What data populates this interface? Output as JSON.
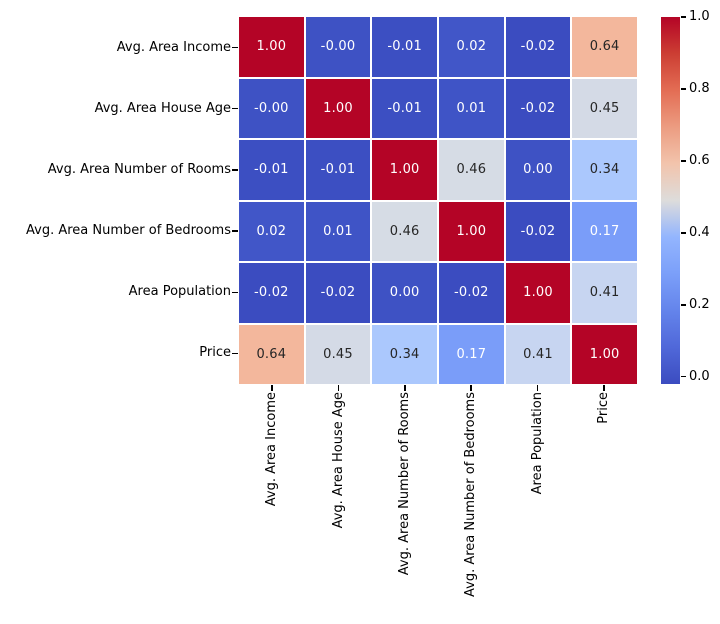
{
  "figure": {
    "background": "#ffffff",
    "axis_text_color": "#000000"
  },
  "chart_data": {
    "type": "heatmap",
    "title": "",
    "colormap": "coolwarm",
    "vmin": -0.02,
    "vmax": 1.0,
    "grid_line_color": "#ffffff",
    "row_labels": [
      "Avg. Area Income",
      "Avg. Area House Age",
      "Avg. Area Number of Rooms",
      "Avg. Area Number of Bedrooms",
      "Area Population",
      "Price"
    ],
    "col_labels": [
      "Avg. Area Income",
      "Avg. Area House Age",
      "Avg. Area Number of Rooms",
      "Avg. Area Number of Bedrooms",
      "Area Population",
      "Price"
    ],
    "matrix": [
      [
        1.0,
        -0.0,
        -0.01,
        0.02,
        -0.02,
        0.64
      ],
      [
        -0.0,
        1.0,
        -0.01,
        0.01,
        -0.02,
        0.45
      ],
      [
        -0.01,
        -0.01,
        1.0,
        0.46,
        0.0,
        0.34
      ],
      [
        0.02,
        0.01,
        0.46,
        1.0,
        -0.02,
        0.17
      ],
      [
        -0.02,
        -0.02,
        0.0,
        -0.02,
        1.0,
        0.41
      ],
      [
        0.64,
        0.45,
        0.34,
        0.17,
        0.41,
        1.0
      ]
    ],
    "annotations": [
      [
        "1.00",
        "-0.00",
        "-0.01",
        "0.02",
        "-0.02",
        "0.64"
      ],
      [
        "-0.00",
        "1.00",
        "-0.01",
        "0.01",
        "-0.02",
        "0.45"
      ],
      [
        "-0.01",
        "-0.01",
        "1.00",
        "0.46",
        "0.00",
        "0.34"
      ],
      [
        "0.02",
        "0.01",
        "0.46",
        "1.00",
        "-0.02",
        "0.17"
      ],
      [
        "-0.02",
        "-0.02",
        "0.00",
        "-0.02",
        "1.00",
        "0.41"
      ],
      [
        "0.64",
        "0.45",
        "0.34",
        "0.17",
        "0.41",
        "1.00"
      ]
    ],
    "cell_colors": [
      [
        "#b40426",
        "#3e52c4",
        "#3c4fc2",
        "#4156c8",
        "#3b4cc0",
        "#f3b79c"
      ],
      [
        "#3e52c4",
        "#b40426",
        "#3c4fc2",
        "#3f54c6",
        "#3b4cc0",
        "#d4dae6"
      ],
      [
        "#3c4fc2",
        "#3c4fc2",
        "#b40426",
        "#d6dce5",
        "#3e52c4",
        "#abc8fd"
      ],
      [
        "#4156c8",
        "#3f54c6",
        "#d6dce5",
        "#b40426",
        "#3b4cc0",
        "#7a9df9"
      ],
      [
        "#3b4cc0",
        "#3b4cc0",
        "#3e52c4",
        "#3b4cc0",
        "#b40426",
        "#c7d5f1"
      ],
      [
        "#f3b79c",
        "#d4dae6",
        "#abc8fd",
        "#7a9df9",
        "#c7d5f1",
        "#b40426"
      ]
    ],
    "cell_text_colors": [
      [
        "#ffffff",
        "#ffffff",
        "#ffffff",
        "#ffffff",
        "#ffffff",
        "#262626"
      ],
      [
        "#ffffff",
        "#ffffff",
        "#ffffff",
        "#ffffff",
        "#ffffff",
        "#262626"
      ],
      [
        "#ffffff",
        "#ffffff",
        "#ffffff",
        "#262626",
        "#ffffff",
        "#262626"
      ],
      [
        "#ffffff",
        "#ffffff",
        "#262626",
        "#ffffff",
        "#ffffff",
        "#ffffff"
      ],
      [
        "#ffffff",
        "#ffffff",
        "#ffffff",
        "#ffffff",
        "#ffffff",
        "#262626"
      ],
      [
        "#262626",
        "#262626",
        "#262626",
        "#ffffff",
        "#262626",
        "#ffffff"
      ]
    ],
    "colorbar": {
      "tick_labels": [
        "0.0",
        "0.2",
        "0.4",
        "0.6",
        "0.8",
        "1.0"
      ],
      "tick_values": [
        0.0,
        0.2,
        0.4,
        0.6,
        0.8,
        1.0
      ],
      "gradient_stops": [
        {
          "pos": 0,
          "color": "#3b4cc0"
        },
        {
          "pos": 10,
          "color": "#5068d9"
        },
        {
          "pos": 20,
          "color": "#6484eb"
        },
        {
          "pos": 30,
          "color": "#7b9ff9"
        },
        {
          "pos": 40,
          "color": "#93b5fe"
        },
        {
          "pos": 50,
          "color": "#dddcdb"
        },
        {
          "pos": 60,
          "color": "#f2c4ac"
        },
        {
          "pos": 70,
          "color": "#ec9c81"
        },
        {
          "pos": 80,
          "color": "#e36d54"
        },
        {
          "pos": 90,
          "color": "#cc3e33"
        },
        {
          "pos": 100,
          "color": "#b40426"
        }
      ]
    }
  }
}
